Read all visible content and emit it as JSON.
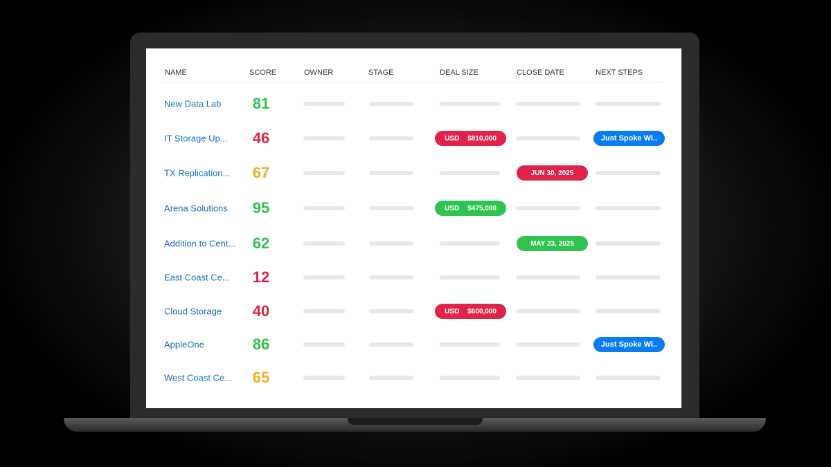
{
  "table": {
    "columns": [
      "NAME",
      "SCORE",
      "OWNER",
      "STAGE",
      "DEAL SIZE",
      "CLOSE DATE",
      "NEXT STEPS"
    ],
    "rows": [
      {
        "name": "New Data Lab",
        "score": "81",
        "score_color": "#2ec44f"
      },
      {
        "name": "IT Storage Up...",
        "score": "46",
        "score_color": "#e0234a",
        "deal": {
          "currency": "USD",
          "amount": "$810,000",
          "color": "#e0234a"
        },
        "next": {
          "text": "Just Spoke Wi..",
          "color": "#0a7cf0"
        }
      },
      {
        "name": "TX Replication...",
        "score": "67",
        "score_color": "#f0b020",
        "close": {
          "text": "JUN 30, 2025",
          "color": "#e0234a"
        }
      },
      {
        "name": "Arena Solutions",
        "score": "95",
        "score_color": "#2ec44f",
        "deal": {
          "currency": "USD",
          "amount": "$475,000",
          "color": "#2ec44f"
        }
      },
      {
        "name": "Addition to Cent...",
        "score": "62",
        "score_color": "#2ec44f",
        "close": {
          "text": "MAY 23, 2025",
          "color": "#2ec44f"
        }
      },
      {
        "name": "East Coast Ce...",
        "score": "12",
        "score_color": "#e0234a"
      },
      {
        "name": "Cloud Storage",
        "score": "40",
        "score_color": "#e0234a",
        "deal": {
          "currency": "USD",
          "amount": "$600,000",
          "color": "#e0234a"
        }
      },
      {
        "name": "AppleOne",
        "score": "86",
        "score_color": "#2ec44f",
        "next": {
          "text": "Just Spoke Wi..",
          "color": "#0a7cf0"
        }
      },
      {
        "name": "West Coast Ce...",
        "score": "65",
        "score_color": "#f0b020"
      }
    ]
  }
}
